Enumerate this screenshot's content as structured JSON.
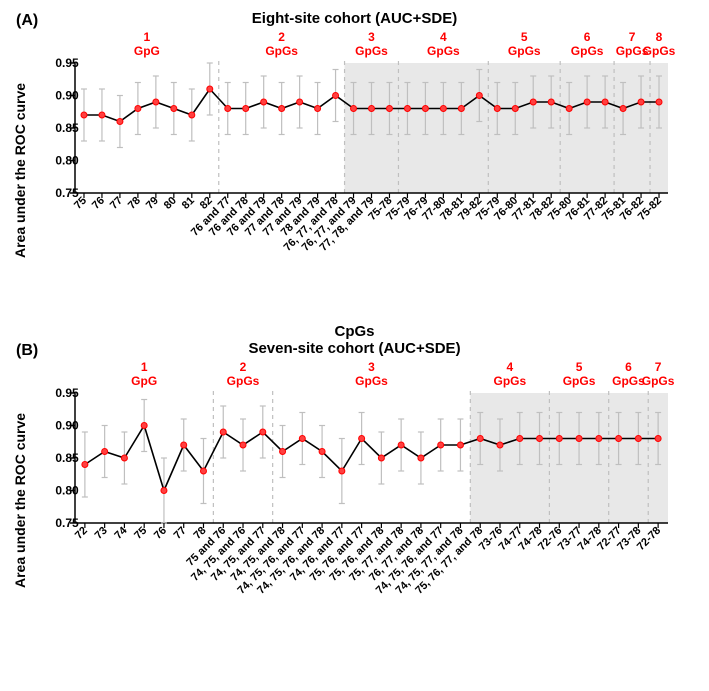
{
  "centerLabel": "CpGs",
  "colors": {
    "marker_fill": "#ff4040",
    "marker_stroke": "#ff0000",
    "line": "#000000",
    "error": "#bfbfbf",
    "shade": "#e8e8e8",
    "vline": "#bfbfbf",
    "group_label": "#ff0000",
    "bg": "#ffffff"
  },
  "panelA": {
    "label": "(A)",
    "title": "Eight-site cohort (AUC+SDE)",
    "ylabel": "Area under\nthe ROC curve",
    "ylim": [
      0.75,
      0.95
    ],
    "yticks": [
      0.75,
      0.8,
      0.85,
      0.9,
      0.95
    ],
    "ytickLabels": [
      "0.75",
      "0.80",
      "0.85",
      "0.90",
      "0.95"
    ],
    "groups": [
      {
        "num": "1",
        "text": "GpG",
        "startIdx": 0,
        "endIdx": 7
      },
      {
        "num": "2",
        "text": "GpGs",
        "startIdx": 8,
        "endIdx": 14
      },
      {
        "num": "3",
        "text": "GpGs",
        "startIdx": 15,
        "endIdx": 17
      },
      {
        "num": "4",
        "text": "GpGs",
        "startIdx": 18,
        "endIdx": 22
      },
      {
        "num": "5",
        "text": "GpGs",
        "startIdx": 23,
        "endIdx": 26
      },
      {
        "num": "6",
        "text": "GpGs",
        "startIdx": 27,
        "endIdx": 29
      },
      {
        "num": "7",
        "text": "GpGs",
        "startIdx": 30,
        "endIdx": 31
      },
      {
        "num": "8",
        "text": "GpGs",
        "startIdx": 32,
        "endIdx": 32
      }
    ],
    "shade": {
      "startIdx": 15,
      "endIdx": 32
    },
    "data": [
      {
        "x": "75",
        "y": 0.87,
        "err": 0.04
      },
      {
        "x": "76",
        "y": 0.87,
        "err": 0.04
      },
      {
        "x": "77",
        "y": 0.86,
        "err": 0.04
      },
      {
        "x": "78",
        "y": 0.88,
        "err": 0.04
      },
      {
        "x": "79",
        "y": 0.89,
        "err": 0.04
      },
      {
        "x": "80",
        "y": 0.88,
        "err": 0.04
      },
      {
        "x": "81",
        "y": 0.87,
        "err": 0.04
      },
      {
        "x": "82",
        "y": 0.91,
        "err": 0.04
      },
      {
        "x": "76 and 77",
        "y": 0.88,
        "err": 0.04
      },
      {
        "x": "76 and 78",
        "y": 0.88,
        "err": 0.04
      },
      {
        "x": "76 and 79",
        "y": 0.89,
        "err": 0.04
      },
      {
        "x": "77 and 78",
        "y": 0.88,
        "err": 0.04
      },
      {
        "x": "77 and 79",
        "y": 0.89,
        "err": 0.04
      },
      {
        "x": "78 and 79",
        "y": 0.88,
        "err": 0.04
      },
      {
        "x": "76, 77, and 78",
        "y": 0.9,
        "err": 0.04
      },
      {
        "x": "76, 77, and 79",
        "y": 0.88,
        "err": 0.04
      },
      {
        "x": "77, 78, and 79",
        "y": 0.88,
        "err": 0.04
      },
      {
        "x": "75-78",
        "y": 0.88,
        "err": 0.04
      },
      {
        "x": "75-79",
        "y": 0.88,
        "err": 0.04
      },
      {
        "x": "76-79",
        "y": 0.88,
        "err": 0.04
      },
      {
        "x": "77-80",
        "y": 0.88,
        "err": 0.04
      },
      {
        "x": "78-81",
        "y": 0.88,
        "err": 0.04
      },
      {
        "x": "79-82",
        "y": 0.9,
        "err": 0.04
      },
      {
        "x": "75-79",
        "y": 0.88,
        "err": 0.04
      },
      {
        "x": "76-80",
        "y": 0.88,
        "err": 0.04
      },
      {
        "x": "77-81",
        "y": 0.89,
        "err": 0.04
      },
      {
        "x": "78-82",
        "y": 0.89,
        "err": 0.04
      },
      {
        "x": "75-80",
        "y": 0.88,
        "err": 0.04
      },
      {
        "x": "76-81",
        "y": 0.89,
        "err": 0.04
      },
      {
        "x": "77-82",
        "y": 0.89,
        "err": 0.04
      },
      {
        "x": "75-81",
        "y": 0.88,
        "err": 0.04
      },
      {
        "x": "76-82",
        "y": 0.89,
        "err": 0.04
      },
      {
        "x": "75-82",
        "y": 0.89,
        "err": 0.04
      }
    ]
  },
  "panelB": {
    "label": "(B)",
    "title": "Seven-site cohort (AUC+SDE)",
    "ylabel": "Area under\nthe ROC curve",
    "ylim": [
      0.75,
      0.95
    ],
    "yticks": [
      0.75,
      0.8,
      0.85,
      0.9,
      0.95
    ],
    "ytickLabels": [
      "0.75",
      "0.80",
      "0.85",
      "0.90",
      "0.95"
    ],
    "groups": [
      {
        "num": "1",
        "text": "GpG",
        "startIdx": 0,
        "endIdx": 6
      },
      {
        "num": "2",
        "text": "GpGs",
        "startIdx": 7,
        "endIdx": 9
      },
      {
        "num": "3",
        "text": "GpGs",
        "startIdx": 10,
        "endIdx": 19
      },
      {
        "num": "4",
        "text": "GpGs",
        "startIdx": 20,
        "endIdx": 23
      },
      {
        "num": "5",
        "text": "GpGs",
        "startIdx": 24,
        "endIdx": 26
      },
      {
        "num": "6",
        "text": "GpGs",
        "startIdx": 27,
        "endIdx": 28
      },
      {
        "num": "7",
        "text": "GpGs",
        "startIdx": 29,
        "endIdx": 29
      }
    ],
    "shade": {
      "startIdx": 20,
      "endIdx": 29
    },
    "data": [
      {
        "x": "72",
        "y": 0.84,
        "err": 0.05
      },
      {
        "x": "73",
        "y": 0.86,
        "err": 0.04
      },
      {
        "x": "74",
        "y": 0.85,
        "err": 0.04
      },
      {
        "x": "75",
        "y": 0.9,
        "err": 0.04
      },
      {
        "x": "76",
        "y": 0.8,
        "err": 0.05
      },
      {
        "x": "77",
        "y": 0.87,
        "err": 0.04
      },
      {
        "x": "78",
        "y": 0.83,
        "err": 0.05
      },
      {
        "x": "75 and 76",
        "y": 0.89,
        "err": 0.04
      },
      {
        "x": "74, 75, and 76",
        "y": 0.87,
        "err": 0.04
      },
      {
        "x": "74, 75, and 77",
        "y": 0.89,
        "err": 0.04
      },
      {
        "x": "74, 75, and 78",
        "y": 0.86,
        "err": 0.04
      },
      {
        "x": "74, 75, 76, and 77",
        "y": 0.88,
        "err": 0.04
      },
      {
        "x": "74, 75, 76, and 78",
        "y": 0.86,
        "err": 0.04
      },
      {
        "x": "74, 76, and 77",
        "y": 0.83,
        "err": 0.05
      },
      {
        "x": "75, 76, and 77",
        "y": 0.88,
        "err": 0.04
      },
      {
        "x": "75, 76, and 78",
        "y": 0.85,
        "err": 0.04
      },
      {
        "x": "75, 77, and 78",
        "y": 0.87,
        "err": 0.04
      },
      {
        "x": "76, 77, and 78",
        "y": 0.85,
        "err": 0.04
      },
      {
        "x": "74, 75, 76, and 77",
        "y": 0.87,
        "err": 0.04
      },
      {
        "x": "74, 75, 77, and 78",
        "y": 0.87,
        "err": 0.04
      },
      {
        "x": "75, 76, 77, and 78",
        "y": 0.88,
        "err": 0.04
      },
      {
        "x": "73-76",
        "y": 0.87,
        "err": 0.04
      },
      {
        "x": "74-77",
        "y": 0.88,
        "err": 0.04
      },
      {
        "x": "74-78",
        "y": 0.88,
        "err": 0.04
      },
      {
        "x": "72-76",
        "y": 0.88,
        "err": 0.04
      },
      {
        "x": "73-77",
        "y": 0.88,
        "err": 0.04
      },
      {
        "x": "74-78",
        "y": 0.88,
        "err": 0.04
      },
      {
        "x": "72-77",
        "y": 0.88,
        "err": 0.04
      },
      {
        "x": "73-78",
        "y": 0.88,
        "err": 0.04
      },
      {
        "x": "72-78",
        "y": 0.88,
        "err": 0.04
      }
    ]
  }
}
